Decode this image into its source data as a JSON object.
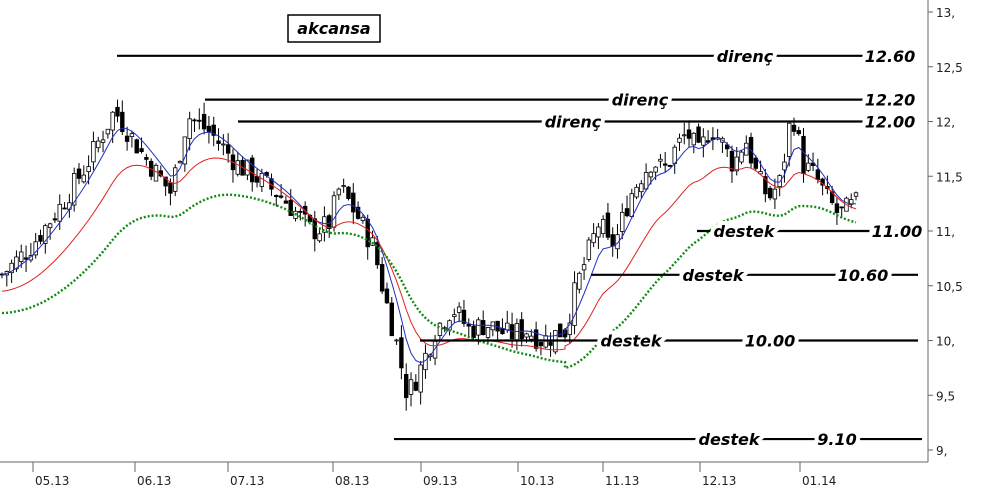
{
  "chart_data": {
    "type": "candlestick",
    "title": "akcansa",
    "ylim": [
      9,
      13
    ],
    "y_ticks": [
      "13,",
      "12,5",
      "12,",
      "11,5",
      "11,",
      "10,5",
      "10,",
      "9,5",
      "9,"
    ],
    "x_ticks": [
      "05.13",
      "06.13",
      "07.13",
      "08.13",
      "09.13",
      "10.13",
      "11.13",
      "12.13",
      "01.14"
    ],
    "levels": [
      {
        "label": "direnç",
        "value": 12.6,
        "value_label": "12.60"
      },
      {
        "label": "direnç",
        "value": 12.2,
        "value_label": "12.20"
      },
      {
        "label": "direnç",
        "value": 12.0,
        "value_label": "12.00"
      },
      {
        "label": "destek",
        "value": 11.0,
        "value_label": "11.00"
      },
      {
        "label": "destek",
        "value": 10.6,
        "value_label": "10.60"
      },
      {
        "label": "destek",
        "value": 10.0,
        "value_label": "10.00"
      },
      {
        "label": "destek",
        "value": 9.1,
        "value_label": "9.10"
      }
    ],
    "series": [
      {
        "color": "#1f2fbf",
        "kind": "moving-average-short"
      },
      {
        "color": "#e02020",
        "kind": "moving-average-medium"
      },
      {
        "color": "#108a10",
        "kind": "moving-average-long",
        "style": "dotted"
      }
    ],
    "approx_close_path": [
      [
        0,
        10.6
      ],
      [
        0.05,
        10.85
      ],
      [
        0.1,
        11.2
      ],
      [
        0.15,
        11.6
      ],
      [
        0.2,
        12.1
      ],
      [
        0.25,
        11.7
      ],
      [
        0.3,
        11.35
      ],
      [
        0.33,
        12.05
      ],
      [
        0.37,
        11.9
      ],
      [
        0.42,
        11.6
      ],
      [
        0.45,
        11.5
      ],
      [
        0.5,
        11.3
      ],
      [
        0.55,
        11.0
      ],
      [
        0.58,
        11.05
      ],
      [
        0.6,
        11.4
      ],
      [
        0.63,
        11.15
      ],
      [
        0.66,
        10.85
      ],
      [
        0.68,
        10.4
      ],
      [
        0.7,
        10.0
      ],
      [
        0.72,
        9.5
      ],
      [
        0.74,
        9.7
      ],
      [
        0.77,
        10.1
      ],
      [
        0.8,
        10.3
      ],
      [
        0.83,
        10.1
      ],
      [
        0.86,
        10.15
      ],
      [
        0.9,
        10.05
      ],
      [
        0.93,
        10.1
      ],
      [
        0.96,
        10.0
      ],
      [
        1.0,
        10.1
      ]
    ],
    "approx_close_path_2": [
      [
        0,
        10.1
      ],
      [
        0.04,
        10.5
      ],
      [
        0.08,
        10.8
      ],
      [
        0.12,
        11.1
      ],
      [
        0.15,
        10.85
      ],
      [
        0.18,
        10.95
      ],
      [
        0.22,
        11.3
      ],
      [
        0.26,
        11.5
      ],
      [
        0.3,
        11.65
      ],
      [
        0.34,
        11.55
      ],
      [
        0.38,
        11.75
      ],
      [
        0.42,
        11.9
      ],
      [
        0.46,
        11.7
      ],
      [
        0.5,
        11.95
      ],
      [
        0.54,
        11.8
      ],
      [
        0.58,
        11.6
      ],
      [
        0.62,
        11.85
      ],
      [
        0.66,
        11.5
      ],
      [
        0.7,
        11.3
      ],
      [
        0.74,
        11.45
      ],
      [
        0.78,
        12.1
      ],
      [
        0.82,
        11.6
      ],
      [
        0.86,
        11.5
      ],
      [
        0.9,
        11.3
      ],
      [
        0.94,
        11.15
      ],
      [
        1.0,
        11.25
      ]
    ]
  }
}
